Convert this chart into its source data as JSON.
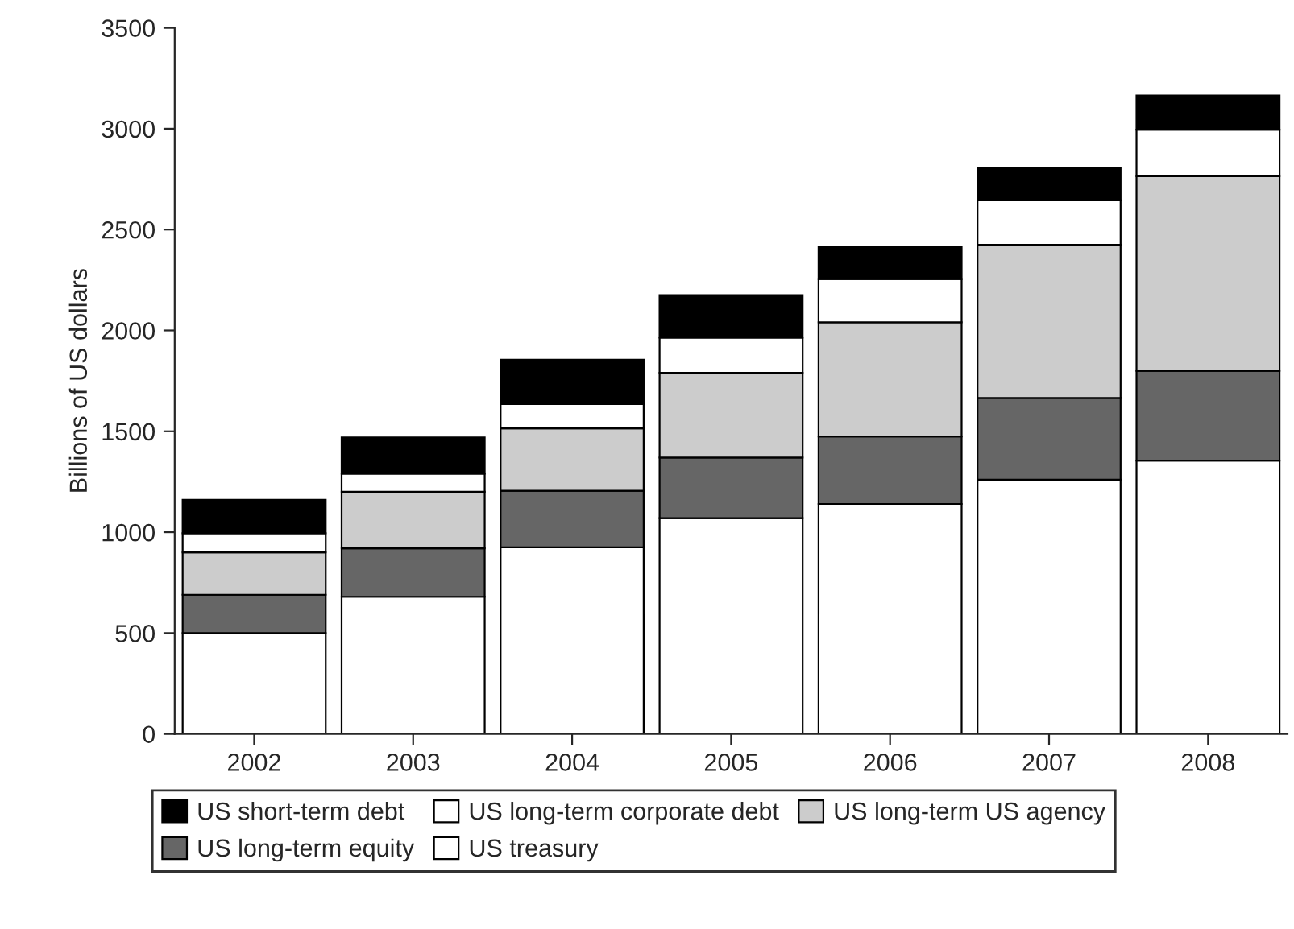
{
  "chart_data": {
    "type": "bar",
    "stacked": true,
    "ylabel": "Billions of US dollars",
    "categories": [
      "2002",
      "2003",
      "2004",
      "2005",
      "2006",
      "2007",
      "2008"
    ],
    "series": [
      {
        "name": "US treasury",
        "color": "#ffffff",
        "values": [
          500,
          680,
          925,
          1070,
          1140,
          1260,
          1355
        ]
      },
      {
        "name": "US long-term equity",
        "color": "#666666",
        "values": [
          190,
          240,
          280,
          300,
          335,
          405,
          445
        ]
      },
      {
        "name": "US long-term US agency",
        "color": "#cccccc",
        "values": [
          210,
          280,
          310,
          420,
          565,
          760,
          965
        ]
      },
      {
        "name": "US long-term corporate debt",
        "color": "#ffffff",
        "values": [
          95,
          90,
          120,
          175,
          215,
          220,
          230
        ]
      },
      {
        "name": "US short-term debt",
        "color": "#000000",
        "values": [
          165,
          180,
          220,
          210,
          160,
          160,
          170
        ]
      }
    ],
    "ylim": [
      0,
      3500
    ],
    "yticks": [
      0,
      500,
      1000,
      1500,
      2000,
      2500,
      3000,
      3500
    ],
    "grid": false,
    "legend": "bottom"
  }
}
